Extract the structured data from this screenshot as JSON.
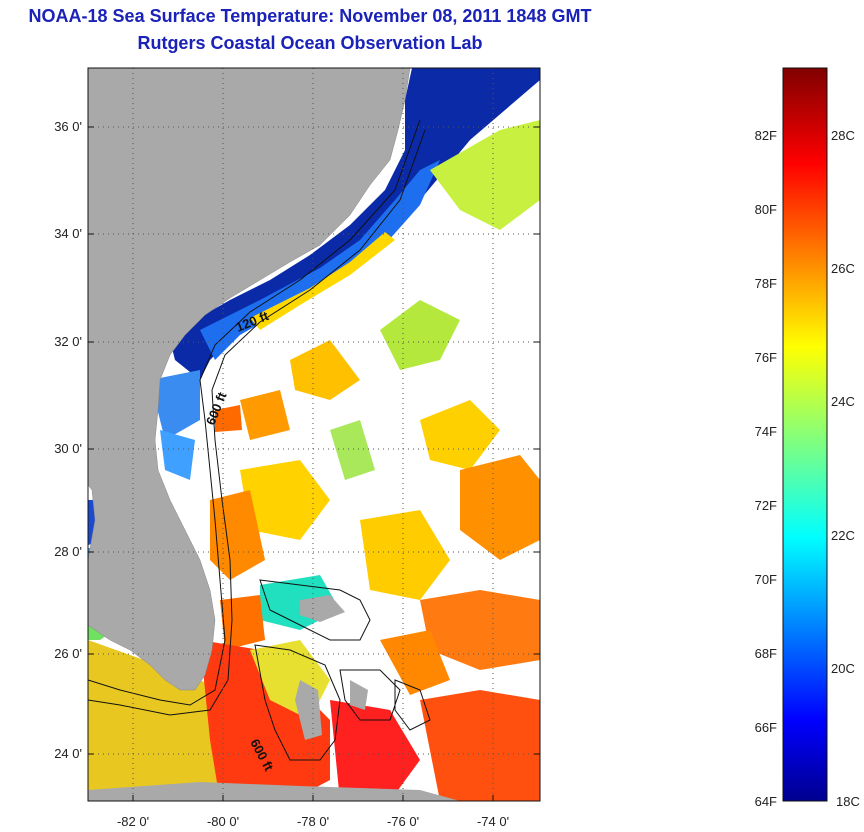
{
  "header": {
    "title": "NOAA-18 Sea Surface Temperature:  November 08, 2011 1848 GMT",
    "subtitle": "Rutgers Coastal Ocean Observation Lab"
  },
  "map": {
    "lat_ticks": [
      "36 0'",
      "34 0'",
      "32 0'",
      "30 0'",
      "28 0'",
      "26 0'",
      "24 0'"
    ],
    "lon_ticks": [
      "-82 0'",
      "-80 0'",
      "-78 0'",
      "-76 0'",
      "-74 0'"
    ],
    "lat_range": [
      23,
      37
    ],
    "lon_range": [
      -83,
      -73
    ],
    "contour_labels": [
      "120 ft",
      "600 ft",
      "600 ft"
    ],
    "colors": {
      "land": "#a9a9a9",
      "cloud": "#ffffff"
    }
  },
  "colorbar": {
    "fahrenheit_labels": [
      "82F",
      "80F",
      "78F",
      "76F",
      "74F",
      "72F",
      "70F",
      "68F",
      "66F",
      "64F"
    ],
    "celsius_labels": [
      "28C",
      "26C",
      "24C",
      "22C",
      "20C",
      "18C"
    ],
    "range_c": [
      18,
      29.5
    ],
    "colormap": "jet"
  }
}
